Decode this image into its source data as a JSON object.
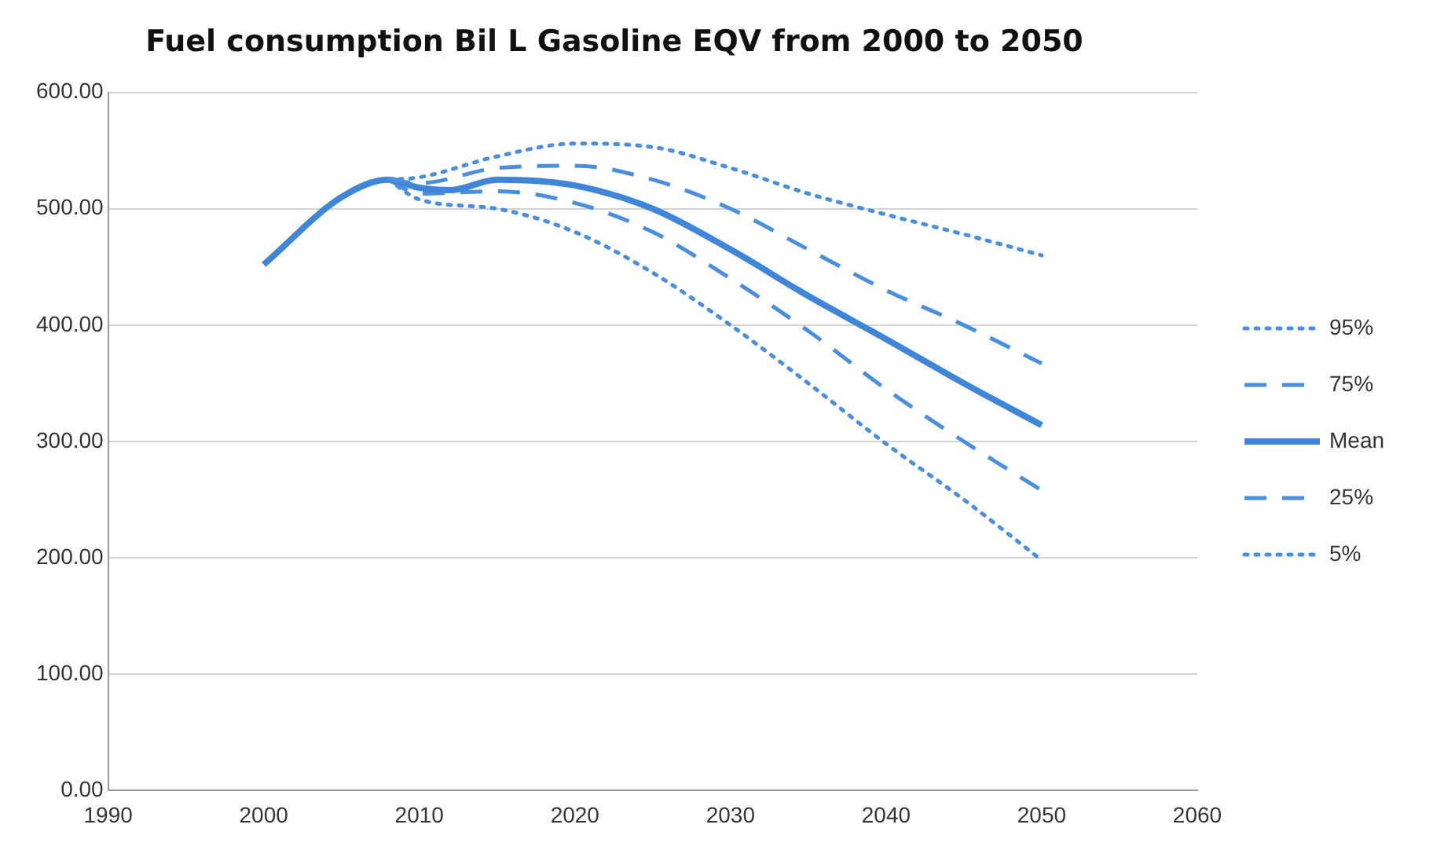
{
  "chart_data": {
    "type": "line",
    "title": "Fuel consumption Bil L Gasoline EQV from 2000 to 2050",
    "series": [
      {
        "name": "95%",
        "color": "#4a8fdc",
        "line_style": "dotted",
        "x": [
          2008,
          2010,
          2015,
          2020,
          2025,
          2030,
          2035,
          2040,
          2045,
          2050
        ],
        "values": [
          525,
          527,
          545,
          556,
          553,
          535,
          513,
          495,
          478,
          460
        ]
      },
      {
        "name": "75%",
        "color": "#4a8fdc",
        "line_style": "dashed",
        "x": [
          2008,
          2010,
          2015,
          2020,
          2025,
          2030,
          2035,
          2040,
          2045,
          2050
        ],
        "values": [
          525,
          522,
          535,
          537,
          525,
          500,
          465,
          430,
          400,
          367
        ]
      },
      {
        "name": "Mean",
        "color": "#3f86d8",
        "line_style": "solid",
        "x": [
          2000,
          2005,
          2008,
          2010,
          2012,
          2015,
          2020,
          2025,
          2030,
          2035,
          2040,
          2045,
          2050
        ],
        "values": [
          452,
          510,
          525,
          518,
          516,
          525,
          520,
          500,
          465,
          425,
          388,
          350,
          314
        ]
      },
      {
        "name": "25%",
        "color": "#4a8fdc",
        "line_style": "dashed",
        "x": [
          2008,
          2010,
          2015,
          2020,
          2025,
          2030,
          2035,
          2040,
          2045,
          2050
        ],
        "values": [
          525,
          513,
          515,
          505,
          480,
          440,
          395,
          345,
          300,
          258
        ]
      },
      {
        "name": "5%",
        "color": "#4a8fdc",
        "line_style": "dotted",
        "x": [
          2008,
          2010,
          2015,
          2020,
          2025,
          2030,
          2035,
          2040,
          2045,
          2050
        ],
        "values": [
          525,
          508,
          500,
          480,
          445,
          400,
          350,
          298,
          250,
          198
        ]
      }
    ],
    "xlim": [
      1990,
      2060
    ],
    "xticks": [
      1990,
      2000,
      2010,
      2020,
      2030,
      2040,
      2050,
      2060
    ],
    "ylim": [
      0,
      600
    ],
    "yticks": [
      {
        "value": 0,
        "label": "0.00"
      },
      {
        "value": 100,
        "label": "100.00"
      },
      {
        "value": 200,
        "label": "200.00"
      },
      {
        "value": 300,
        "label": "300.00"
      },
      {
        "value": 400,
        "label": "400.00"
      },
      {
        "value": 500,
        "label": "500.00"
      },
      {
        "value": 600,
        "label": "600.00"
      }
    ],
    "grid": "y",
    "legend": "right",
    "marker": "none"
  }
}
